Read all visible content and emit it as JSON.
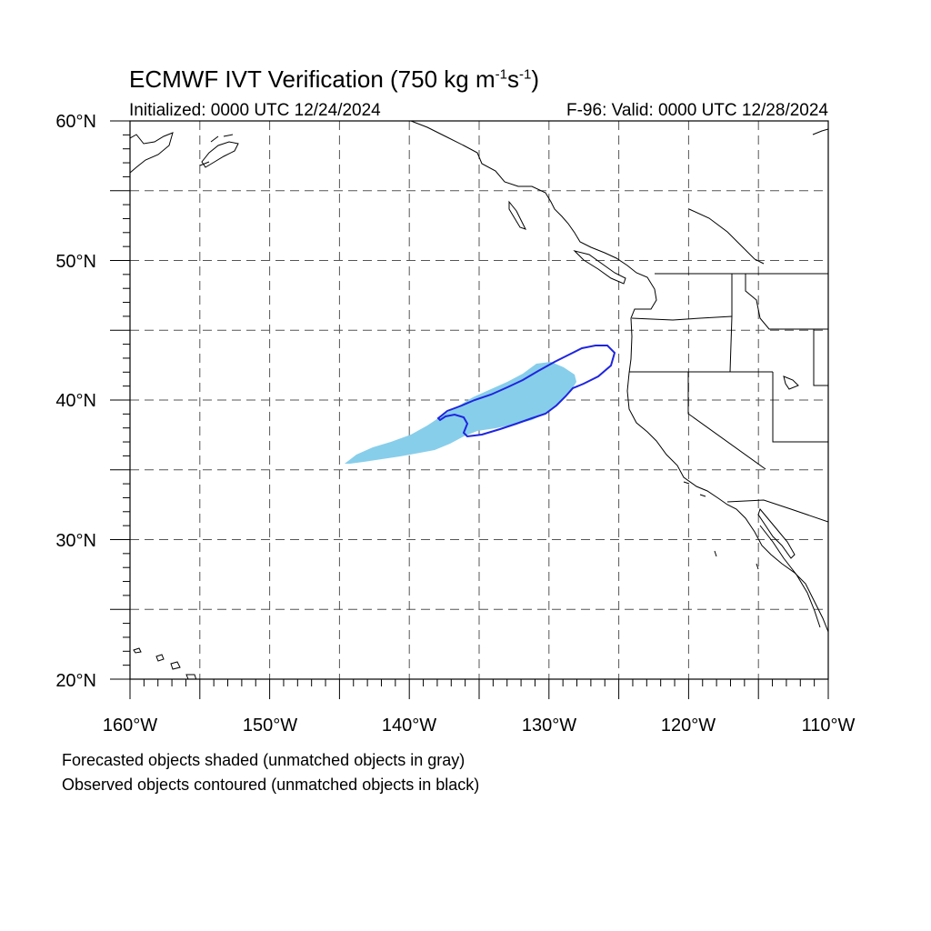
{
  "title": {
    "prefix": "ECMWF IVT Verification (750 kg m",
    "exp1": "-1",
    "mid": "s",
    "exp2": "-1",
    "suffix": ")"
  },
  "initialized": "Initialized: 0000 UTC 12/24/2024",
  "valid": "F-96: Valid: 0000 UTC 12/28/2024",
  "lat_labels": [
    "60°N",
    "50°N",
    "40°N",
    "30°N",
    "20°N"
  ],
  "lon_labels": [
    "160°W",
    "150°W",
    "140°W",
    "130°W",
    "120°W",
    "110°W"
  ],
  "notes": [
    "Forecasted objects shaded (unmatched objects in gray)",
    "Observed objects contoured (unmatched objects in black)"
  ],
  "colors": {
    "forecast_fill": "#87ceeb",
    "observed_contour": "#1f25e0",
    "coastline": "#000000",
    "grid": "#555555"
  }
}
